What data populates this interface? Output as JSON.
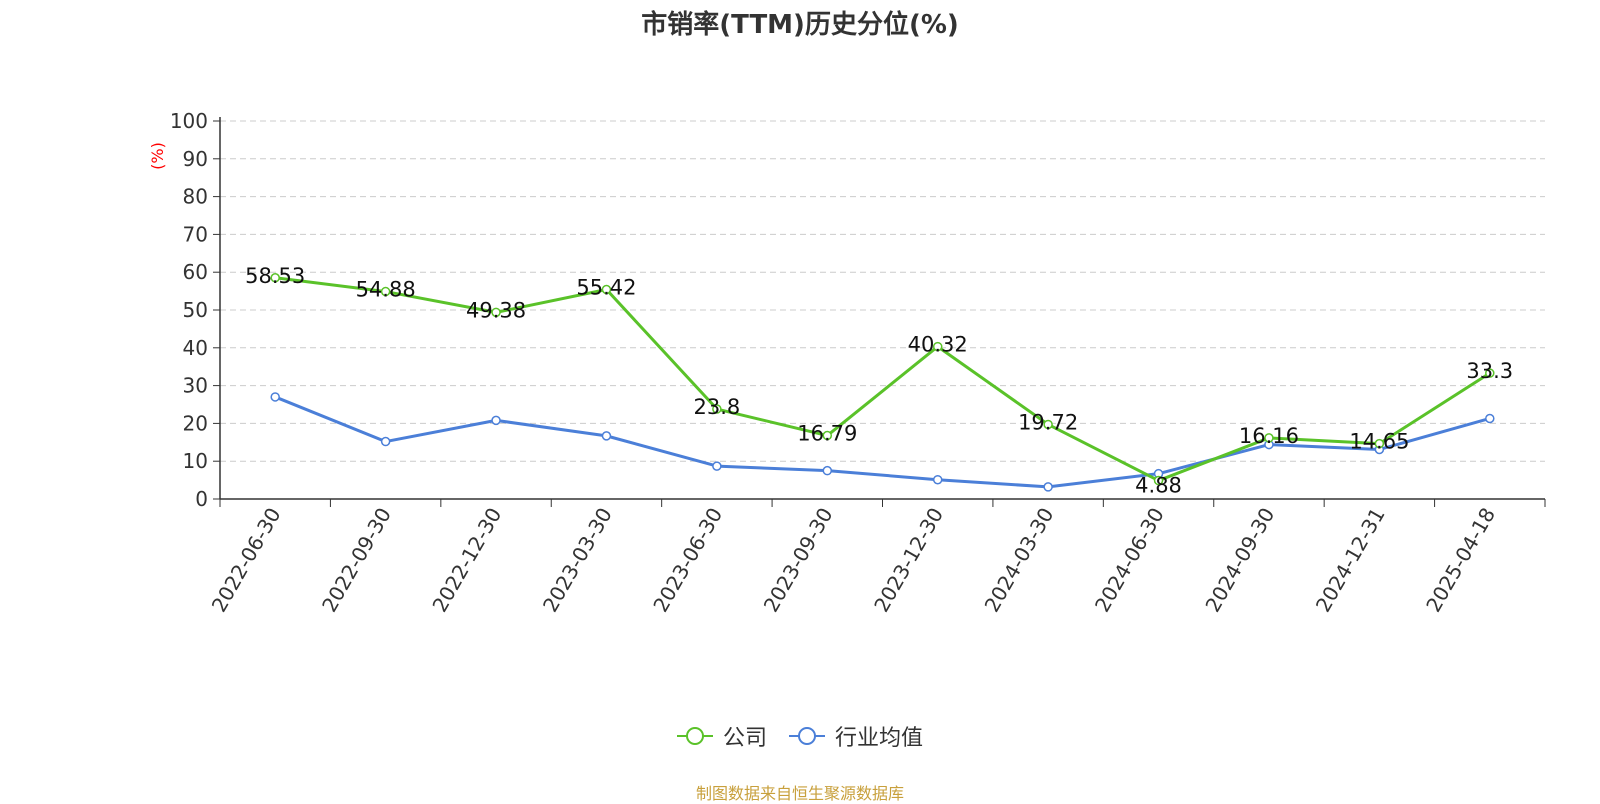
{
  "chart_data": {
    "type": "line",
    "title": "市销率(TTM)历史分位(%)",
    "ylabel": "(%)",
    "ylim": [
      0,
      100
    ],
    "yticks": [
      0,
      10,
      20,
      30,
      40,
      50,
      60,
      70,
      80,
      90,
      100
    ],
    "grid": true,
    "legend_position": "bottom",
    "categories": [
      "2022-06-30",
      "2022-09-30",
      "2022-12-30",
      "2023-03-30",
      "2023-06-30",
      "2023-09-30",
      "2023-12-30",
      "2024-03-30",
      "2024-06-30",
      "2024-09-30",
      "2024-12-31",
      "2025-04-18"
    ],
    "series": [
      {
        "name": "公司",
        "color": "#5ac229",
        "values": [
          58.53,
          54.88,
          49.38,
          55.42,
          23.8,
          16.79,
          40.32,
          19.72,
          4.88,
          16.16,
          14.65,
          33.3
        ],
        "labels": [
          "58.53",
          "54.88",
          "49.38",
          "55.42",
          "23.8",
          "16.79",
          "40.32",
          "19.72",
          "4.88",
          "16.16",
          "14.65",
          "33.3"
        ]
      },
      {
        "name": "行业均值",
        "color": "#4b7fd8",
        "values": [
          27.0,
          15.2,
          20.8,
          16.7,
          8.7,
          7.5,
          5.1,
          3.2,
          6.7,
          14.4,
          13.1,
          21.3
        ]
      }
    ]
  },
  "source_note": "制图数据来自恒生聚源数据库",
  "colors": {
    "title": "#333333",
    "axis": "#333333",
    "grid": "#cccccc",
    "ylabel": "#ff0000",
    "source": "#c8a03c"
  }
}
